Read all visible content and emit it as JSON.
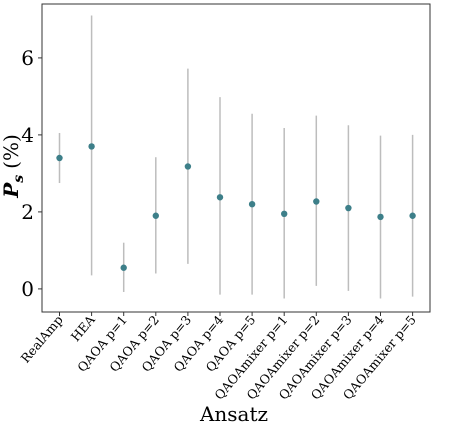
{
  "chart_data": {
    "type": "scatter",
    "xlabel": "Ansatz",
    "ylabel_main": "P",
    "ylabel_sub": "s",
    "ylabel_unit": "(%)",
    "ylim": [
      -0.6,
      7.4
    ],
    "yticks": [
      0,
      2,
      4,
      6
    ],
    "categories": [
      "RealAmp",
      "HEA",
      "QAOA p=1",
      "QAOA p=2",
      "QAOA p=3",
      "QAOA p=4",
      "QAOA p=5",
      "QAOAmixer p=1",
      "QAOAmixer p=2",
      "QAOAmixer p=3",
      "QAOAmixer p=4",
      "QAOAmixer p=5"
    ],
    "values": [
      3.4,
      3.7,
      0.55,
      1.9,
      3.18,
      2.38,
      2.2,
      1.95,
      2.27,
      2.1,
      1.87,
      1.9
    ],
    "err_low": [
      2.75,
      0.35,
      -0.08,
      0.4,
      0.65,
      -0.15,
      -0.15,
      -0.25,
      0.08,
      -0.05,
      -0.25,
      -0.2
    ],
    "err_high": [
      4.05,
      7.1,
      1.2,
      3.42,
      5.72,
      4.98,
      4.55,
      4.18,
      4.5,
      4.25,
      3.98,
      4.0
    ],
    "grid": false,
    "colors": {
      "point": "#3d7f89",
      "errorbar": "#bdbdbd",
      "frame": "#333333"
    }
  }
}
